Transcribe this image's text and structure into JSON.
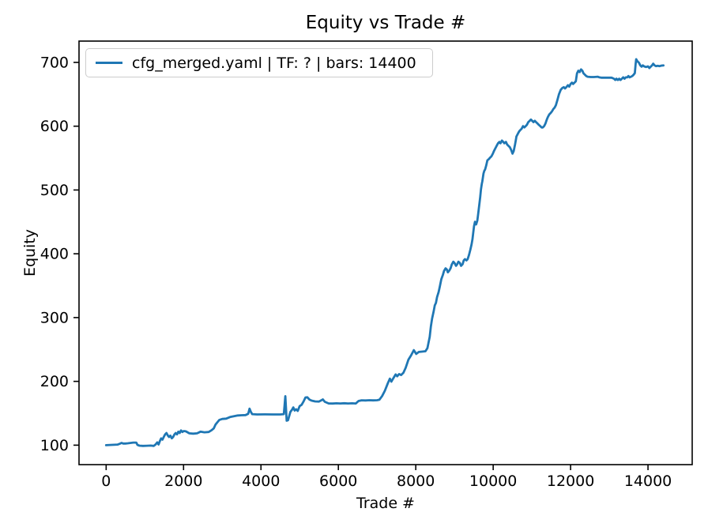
{
  "colors": {
    "line": "#1f77b4",
    "spine": "#000000",
    "text": "#000000",
    "legend_border": "#cccccc"
  },
  "chart_data": {
    "type": "line",
    "title": "Equity vs Trade #",
    "xlabel": "Trade #",
    "ylabel": "Equity",
    "legend_position": "upper left",
    "grid": false,
    "x_ticks": [
      0,
      2000,
      4000,
      6000,
      8000,
      10000,
      12000,
      14000
    ],
    "y_ticks": [
      100,
      200,
      300,
      400,
      500,
      600,
      700
    ],
    "xlim": [
      -701,
      15142
    ],
    "ylim": [
      69.5,
      733.4
    ],
    "series": [
      {
        "name": "cfg_merged.yaml | TF: ? | bars: 14400",
        "color": "#1f77b4",
        "points": [
          [
            0,
            100
          ],
          [
            100,
            100.3
          ],
          [
            200,
            100.6
          ],
          [
            300,
            101
          ],
          [
            360,
            102.5
          ],
          [
            400,
            103.6
          ],
          [
            440,
            102.6
          ],
          [
            500,
            102.6
          ],
          [
            560,
            102.9
          ],
          [
            620,
            103.4
          ],
          [
            700,
            104.1
          ],
          [
            780,
            104.1
          ],
          [
            810,
            100.4
          ],
          [
            860,
            99.2
          ],
          [
            950,
            98.9
          ],
          [
            1050,
            99.1
          ],
          [
            1150,
            99.3
          ],
          [
            1230,
            98.9
          ],
          [
            1280,
            101.2
          ],
          [
            1320,
            104.4
          ],
          [
            1355,
            101.1
          ],
          [
            1390,
            106.6
          ],
          [
            1420,
            110.6
          ],
          [
            1455,
            108.6
          ],
          [
            1490,
            113
          ],
          [
            1525,
            117
          ],
          [
            1560,
            119.1
          ],
          [
            1595,
            114.9
          ],
          [
            1625,
            112.9
          ],
          [
            1660,
            114.9
          ],
          [
            1695,
            110.8
          ],
          [
            1730,
            112.9
          ],
          [
            1765,
            117
          ],
          [
            1795,
            119.1
          ],
          [
            1830,
            117
          ],
          [
            1865,
            121.1
          ],
          [
            1900,
            119.1
          ],
          [
            1935,
            123.1
          ],
          [
            1970,
            120.6
          ],
          [
            2005,
            122.1
          ],
          [
            2060,
            121.6
          ],
          [
            2150,
            118.6
          ],
          [
            2250,
            118.1
          ],
          [
            2350,
            118.6
          ],
          [
            2440,
            121.1
          ],
          [
            2540,
            120.1
          ],
          [
            2650,
            120.6
          ],
          [
            2720,
            123.2
          ],
          [
            2780,
            126.2
          ],
          [
            2825,
            132.2
          ],
          [
            2870,
            135.7
          ],
          [
            2925,
            139.6
          ],
          [
            3000,
            141.1
          ],
          [
            3100,
            141.6
          ],
          [
            3200,
            144.1
          ],
          [
            3300,
            145.3
          ],
          [
            3400,
            146.6
          ],
          [
            3500,
            146.9
          ],
          [
            3600,
            147.1
          ],
          [
            3670,
            149.1
          ],
          [
            3705,
            157.2
          ],
          [
            3740,
            152.1
          ],
          [
            3775,
            148.6
          ],
          [
            3900,
            148.1
          ],
          [
            4100,
            148.3
          ],
          [
            4300,
            148.1
          ],
          [
            4500,
            148.1
          ],
          [
            4590,
            148.6
          ],
          [
            4630,
            176.8
          ],
          [
            4665,
            138.4
          ],
          [
            4700,
            139.1
          ],
          [
            4760,
            152.2
          ],
          [
            4800,
            155.2
          ],
          [
            4835,
            159.2
          ],
          [
            4870,
            154.2
          ],
          [
            4910,
            156.2
          ],
          [
            4950,
            153.7
          ],
          [
            5000,
            161.2
          ],
          [
            5050,
            163.3
          ],
          [
            5100,
            168.3
          ],
          [
            5150,
            174.8
          ],
          [
            5200,
            175
          ],
          [
            5250,
            171.6
          ],
          [
            5310,
            169.8
          ],
          [
            5400,
            168.6
          ],
          [
            5500,
            168.4
          ],
          [
            5600,
            171.7
          ],
          [
            5650,
            168
          ],
          [
            5750,
            165.4
          ],
          [
            5850,
            165.2
          ],
          [
            5950,
            165.6
          ],
          [
            6050,
            165.4
          ],
          [
            6150,
            165.7
          ],
          [
            6250,
            165.4
          ],
          [
            6350,
            165.6
          ],
          [
            6450,
            165.4
          ],
          [
            6520,
            169.2
          ],
          [
            6600,
            170.3
          ],
          [
            6700,
            170.1
          ],
          [
            6800,
            170.4
          ],
          [
            6900,
            170.2
          ],
          [
            7000,
            170.4
          ],
          [
            7060,
            171.2
          ],
          [
            7130,
            177
          ],
          [
            7200,
            185.2
          ],
          [
            7280,
            197.3
          ],
          [
            7330,
            204.3
          ],
          [
            7370,
            199.5
          ],
          [
            7400,
            202.9
          ],
          [
            7440,
            207
          ],
          [
            7480,
            211
          ],
          [
            7520,
            208
          ],
          [
            7570,
            211.4
          ],
          [
            7620,
            209.9
          ],
          [
            7680,
            213.4
          ],
          [
            7740,
            221.3
          ],
          [
            7810,
            234.1
          ],
          [
            7880,
            240.9
          ],
          [
            7950,
            249
          ],
          [
            8010,
            243
          ],
          [
            8080,
            246.1
          ],
          [
            8160,
            246.6
          ],
          [
            8250,
            247.2
          ],
          [
            8300,
            252.1
          ],
          [
            8360,
            269.7
          ],
          [
            8390,
            286.2
          ],
          [
            8420,
            298.3
          ],
          [
            8460,
            309
          ],
          [
            8490,
            318.9
          ],
          [
            8520,
            323
          ],
          [
            8550,
            332.1
          ],
          [
            8590,
            340
          ],
          [
            8620,
            348
          ],
          [
            8660,
            360.1
          ],
          [
            8700,
            367
          ],
          [
            8730,
            373
          ],
          [
            8770,
            377.2
          ],
          [
            8800,
            375.6
          ],
          [
            8830,
            371
          ],
          [
            8870,
            374.1
          ],
          [
            8900,
            377.6
          ],
          [
            8930,
            383.1
          ],
          [
            8970,
            387.6
          ],
          [
            9000,
            385.6
          ],
          [
            9040,
            381.1
          ],
          [
            9070,
            383.6
          ],
          [
            9100,
            387.6
          ],
          [
            9140,
            385.6
          ],
          [
            9170,
            381.1
          ],
          [
            9210,
            383.6
          ],
          [
            9240,
            389.6
          ],
          [
            9270,
            391.6
          ],
          [
            9310,
            389.6
          ],
          [
            9340,
            391.6
          ],
          [
            9375,
            398
          ],
          [
            9410,
            406.1
          ],
          [
            9440,
            414.2
          ],
          [
            9465,
            422.6
          ],
          [
            9485,
            433
          ],
          [
            9505,
            443.2
          ],
          [
            9530,
            450.1
          ],
          [
            9560,
            446.1
          ],
          [
            9590,
            452.2
          ],
          [
            9615,
            464
          ],
          [
            9640,
            476.3
          ],
          [
            9665,
            488.7
          ],
          [
            9685,
            501.1
          ],
          [
            9705,
            509.3
          ],
          [
            9720,
            513.5
          ],
          [
            9750,
            525.9
          ],
          [
            9770,
            530
          ],
          [
            9790,
            532.1
          ],
          [
            9820,
            538.3
          ],
          [
            9850,
            546.5
          ],
          [
            9890,
            548.6
          ],
          [
            9920,
            550.7
          ],
          [
            9955,
            552.7
          ],
          [
            9990,
            556.9
          ],
          [
            10020,
            561
          ],
          [
            10055,
            565.1
          ],
          [
            10090,
            569.2
          ],
          [
            10125,
            573.3
          ],
          [
            10160,
            575.4
          ],
          [
            10190,
            573.3
          ],
          [
            10225,
            577.5
          ],
          [
            10260,
            575.4
          ],
          [
            10290,
            573.3
          ],
          [
            10330,
            575.4
          ],
          [
            10360,
            571.3
          ],
          [
            10395,
            569.2
          ],
          [
            10430,
            567.1
          ],
          [
            10465,
            562.9
          ],
          [
            10500,
            557
          ],
          [
            10530,
            561
          ],
          [
            10565,
            571.3
          ],
          [
            10590,
            579.5
          ],
          [
            10600,
            583.6
          ],
          [
            10635,
            587.7
          ],
          [
            10670,
            591.8
          ],
          [
            10700,
            593.9
          ],
          [
            10735,
            595.9
          ],
          [
            10770,
            600.1
          ],
          [
            10805,
            598
          ],
          [
            10840,
            600.1
          ],
          [
            10870,
            602.1
          ],
          [
            10905,
            606.3
          ],
          [
            10940,
            608.3
          ],
          [
            10975,
            610.4
          ],
          [
            11010,
            608.3
          ],
          [
            11040,
            606.3
          ],
          [
            11075,
            608.4
          ],
          [
            11110,
            606.3
          ],
          [
            11145,
            604.2
          ],
          [
            11180,
            602.1
          ],
          [
            11215,
            600.1
          ],
          [
            11250,
            598
          ],
          [
            11280,
            598
          ],
          [
            11315,
            600.1
          ],
          [
            11350,
            604.2
          ],
          [
            11385,
            610.4
          ],
          [
            11415,
            614.5
          ],
          [
            11450,
            618.6
          ],
          [
            11485,
            620.7
          ],
          [
            11520,
            623.4
          ],
          [
            11555,
            627
          ],
          [
            11585,
            629
          ],
          [
            11620,
            633
          ],
          [
            11660,
            641
          ],
          [
            11700,
            650
          ],
          [
            11745,
            657
          ],
          [
            11790,
            660.1
          ],
          [
            11825,
            661.2
          ],
          [
            11855,
            659.1
          ],
          [
            11895,
            661.6
          ],
          [
            11930,
            664.2
          ],
          [
            11965,
            662.1
          ],
          [
            12000,
            666.2
          ],
          [
            12035,
            668.3
          ],
          [
            12065,
            666.2
          ],
          [
            12100,
            668.3
          ],
          [
            12135,
            670.4
          ],
          [
            12165,
            682.8
          ],
          [
            12200,
            686.9
          ],
          [
            12235,
            684.9
          ],
          [
            12270,
            689
          ],
          [
            12305,
            686.9
          ],
          [
            12335,
            682.8
          ],
          [
            12370,
            680.7
          ],
          [
            12405,
            678.6
          ],
          [
            12440,
            677.6
          ],
          [
            12520,
            677.1
          ],
          [
            12600,
            677.1
          ],
          [
            12700,
            677.6
          ],
          [
            12745,
            676.6
          ],
          [
            12790,
            676.1
          ],
          [
            12870,
            676.1
          ],
          [
            12970,
            676.1
          ],
          [
            13060,
            676.1
          ],
          [
            13120,
            674.5
          ],
          [
            13155,
            672.5
          ],
          [
            13185,
            674.5
          ],
          [
            13220,
            672.5
          ],
          [
            13255,
            674.5
          ],
          [
            13290,
            672.5
          ],
          [
            13325,
            674.5
          ],
          [
            13360,
            676.6
          ],
          [
            13395,
            674.5
          ],
          [
            13425,
            676.6
          ],
          [
            13465,
            676.6
          ],
          [
            13495,
            678.6
          ],
          [
            13525,
            676.6
          ],
          [
            13560,
            677.6
          ],
          [
            13595,
            678.6
          ],
          [
            13630,
            680.7
          ],
          [
            13660,
            683.2
          ],
          [
            13680,
            697.2
          ],
          [
            13695,
            705
          ],
          [
            13730,
            701.6
          ],
          [
            13765,
            699.5
          ],
          [
            13800,
            695.4
          ],
          [
            13835,
            693.3
          ],
          [
            13865,
            695.4
          ],
          [
            13900,
            693.8
          ],
          [
            13950,
            692.8
          ],
          [
            14000,
            693.8
          ],
          [
            14035,
            691.2
          ],
          [
            14070,
            693.3
          ],
          [
            14105,
            695.4
          ],
          [
            14135,
            698
          ],
          [
            14170,
            695.4
          ],
          [
            14205,
            694.1
          ],
          [
            14250,
            694.6
          ],
          [
            14300,
            694.1
          ],
          [
            14350,
            695
          ],
          [
            14400,
            695.2
          ]
        ]
      }
    ]
  }
}
